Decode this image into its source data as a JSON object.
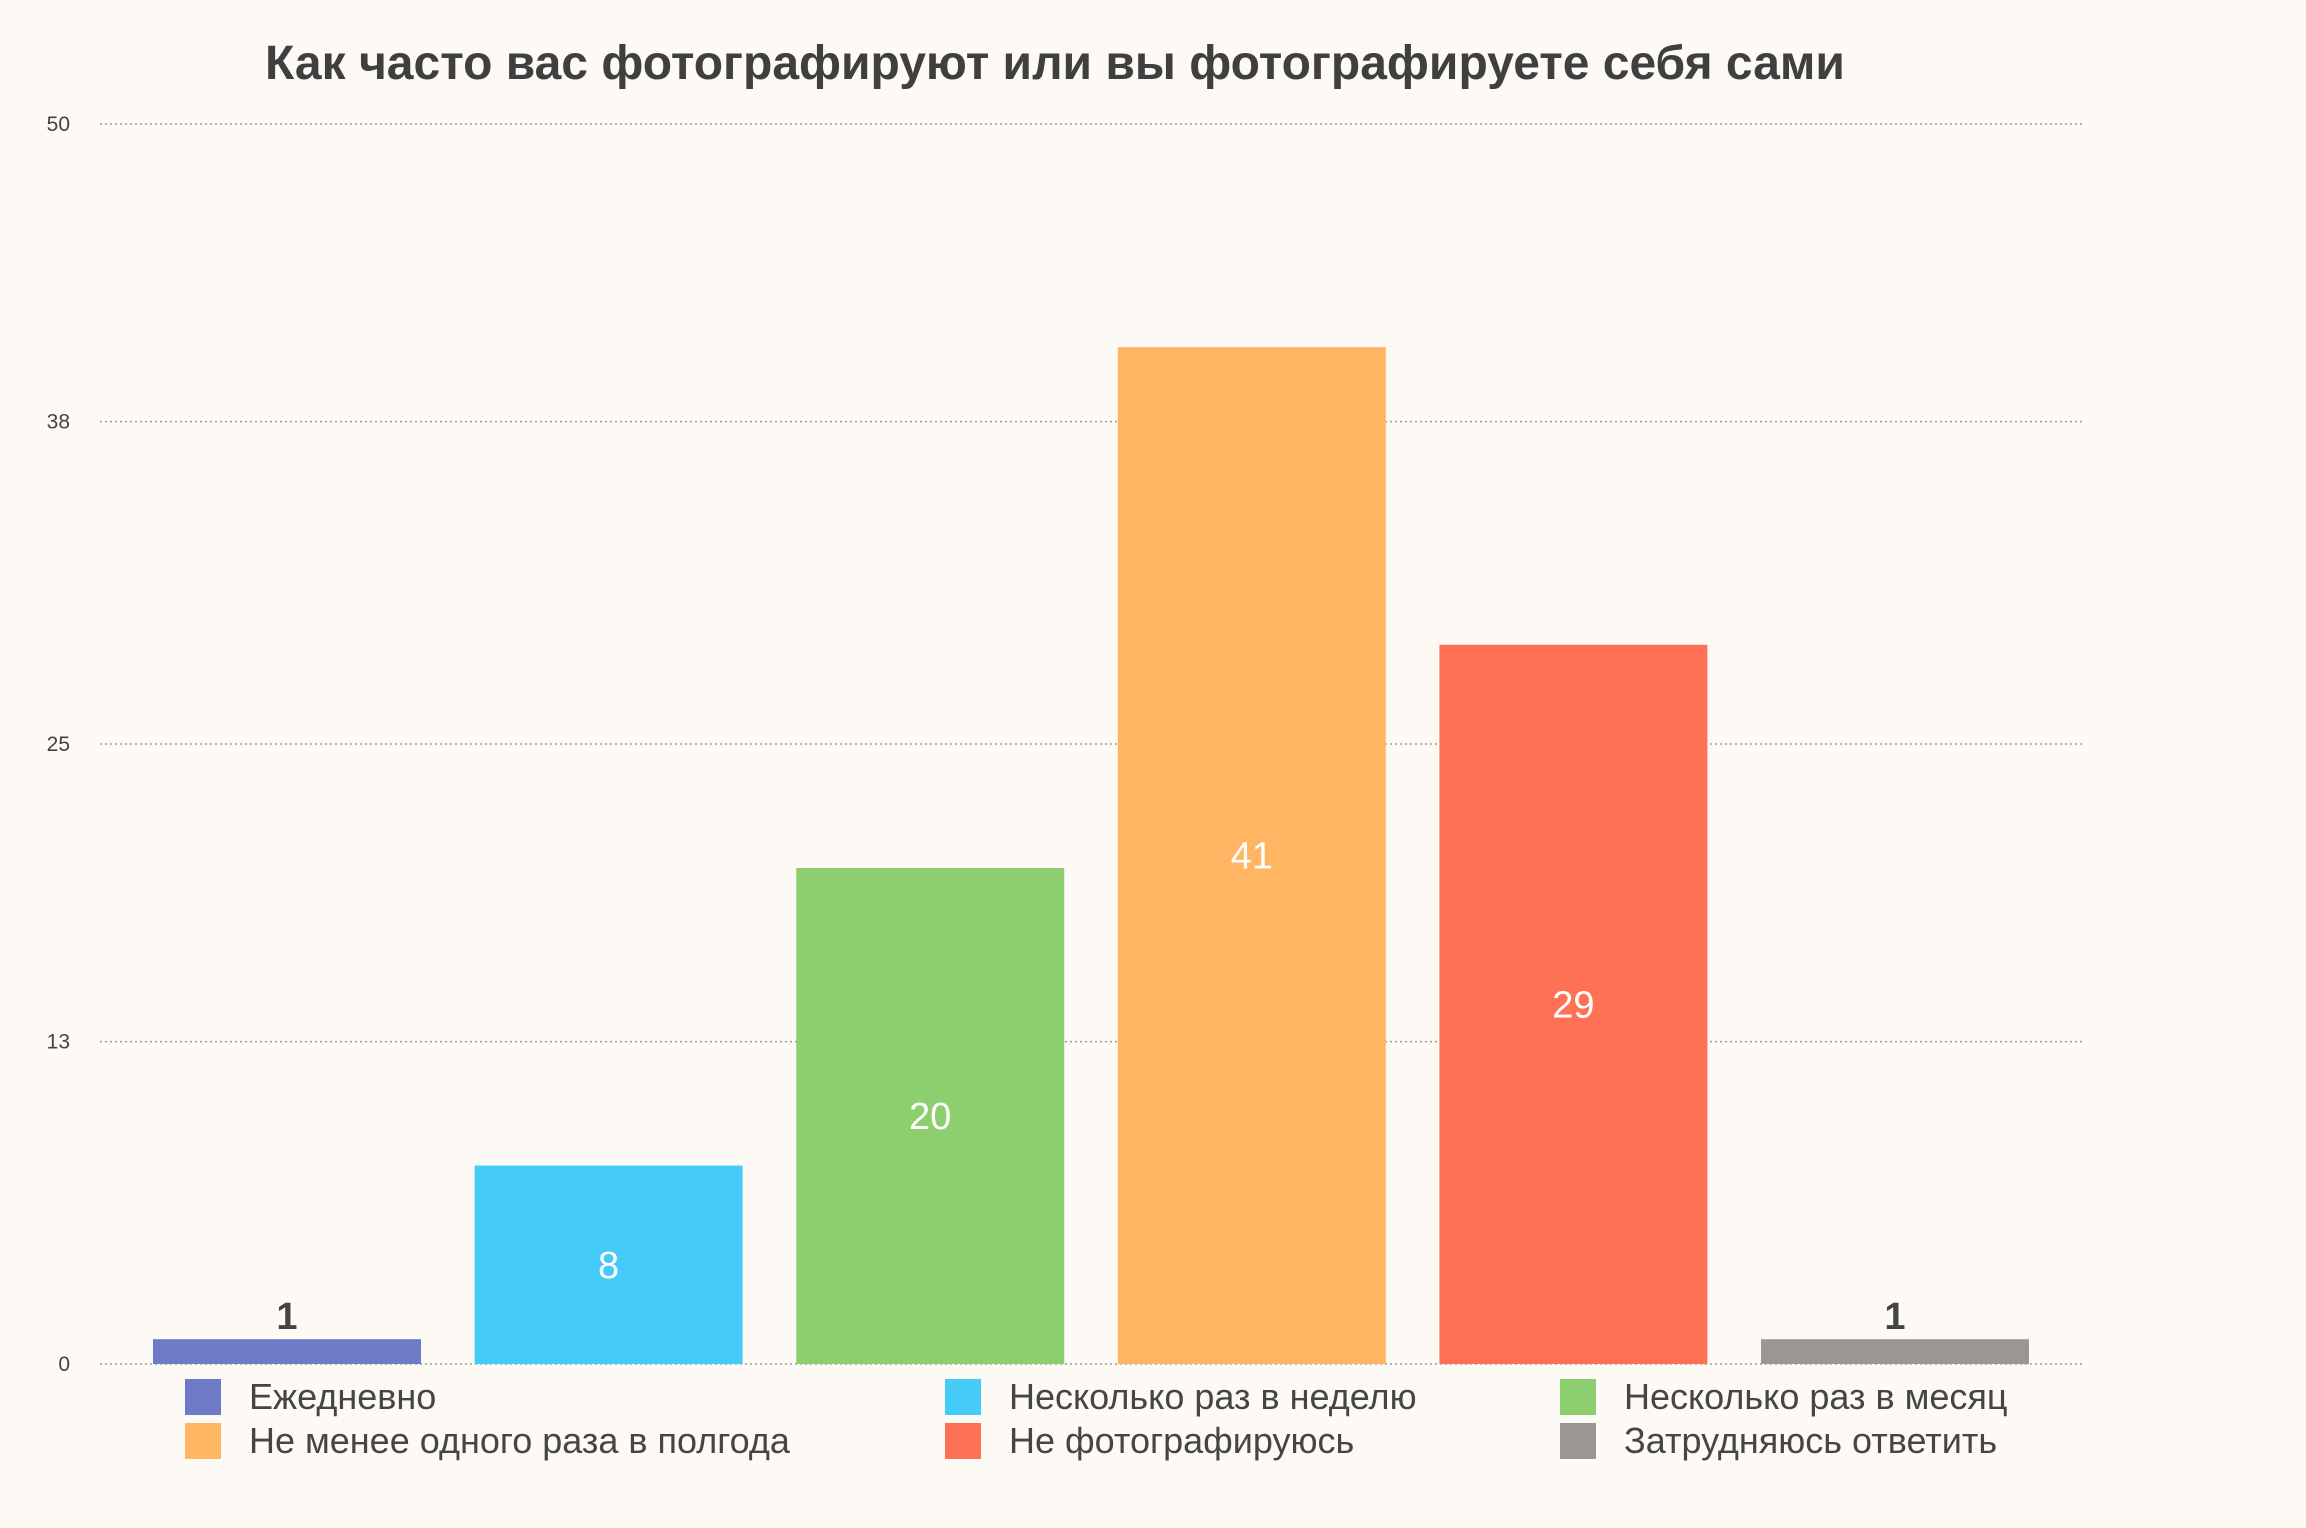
{
  "chart_data": {
    "type": "bar",
    "title": "Как часто вас фотографируют или вы фотографируете себя сами",
    "categories": [
      "Ежедневно",
      "Несколько раз в неделю",
      "Несколько раз в месяц",
      "Не менее одного раза в полгода",
      "Не фотографируюсь",
      "Затрудняюсь ответить"
    ],
    "values": [
      1,
      8,
      20,
      41,
      29,
      1
    ],
    "colors": [
      "#6f7bc8",
      "#45cbf7",
      "#8dcf6e",
      "#ffb562",
      "#ff7155",
      "#9a9691"
    ],
    "ylim": [
      0,
      50
    ],
    "yticks": [
      "0",
      "13",
      "25",
      "38",
      "50"
    ],
    "grid": true,
    "grid_style": "dotted",
    "legend_position": "bottom",
    "xlabel": "",
    "ylabel": ""
  }
}
